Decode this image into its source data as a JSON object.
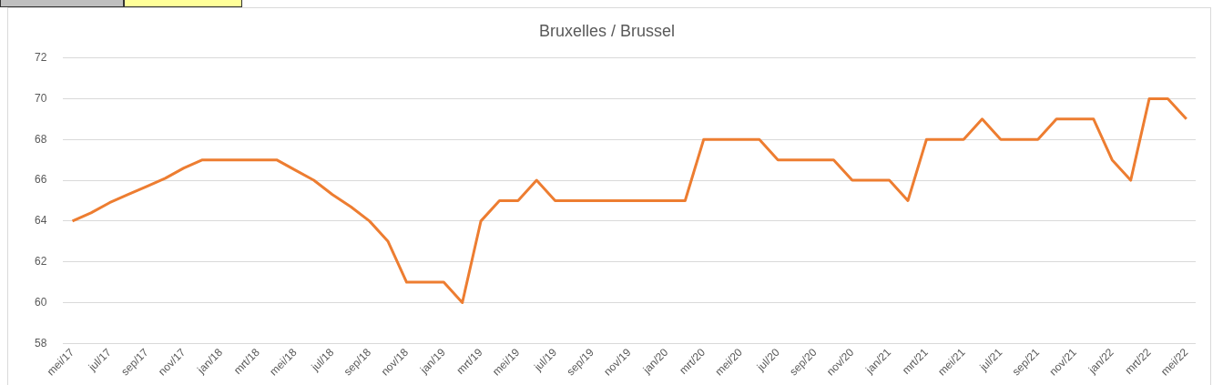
{
  "chart_data": {
    "type": "line",
    "title": "Bruxelles / Brussel",
    "categories": [
      "mei/17",
      null,
      "jul/17",
      null,
      "sep/17",
      null,
      "nov/17",
      null,
      "jan/18",
      null,
      "mrt/18",
      null,
      "mei/18",
      null,
      "jul/18",
      null,
      "sep/18",
      null,
      "nov/18",
      null,
      "jan/19",
      null,
      "mrt/19",
      null,
      "mei/19",
      null,
      "jul/19",
      null,
      "sep/19",
      null,
      "nov/19",
      null,
      "jan/20",
      null,
      "mrt/20",
      null,
      "mei/20",
      null,
      "jul/20",
      null,
      "sep/20",
      null,
      "nov/20",
      null,
      "jan/21",
      null,
      "mrt/21",
      null,
      "mei/21",
      null,
      "jul/21",
      null,
      "sep/21",
      null,
      "nov/21",
      null,
      "jan/22",
      null,
      "mrt/22",
      null,
      "mei/22"
    ],
    "series": [
      {
        "color": "#ed7d31",
        "values": [
          64,
          64.4,
          64.9,
          65.3,
          65.7,
          66.1,
          66.6,
          67,
          67,
          67,
          67,
          67,
          66.5,
          66,
          65.3,
          64.7,
          64,
          63,
          61,
          61,
          61,
          60,
          64,
          65,
          65,
          66,
          65,
          65,
          65,
          65,
          65,
          65,
          65,
          65,
          68,
          68,
          68,
          68,
          67,
          67,
          67,
          67,
          66,
          66,
          66,
          65,
          68,
          68,
          68,
          69,
          68,
          68,
          68,
          69,
          69,
          69,
          67,
          66,
          70,
          70,
          69
        ]
      }
    ],
    "ylim": [
      58,
      72
    ],
    "yticks": [
      58,
      60,
      62,
      64,
      66,
      68,
      70,
      72
    ],
    "grid": "y",
    "legend": false,
    "marker": "none",
    "line_style": "solid"
  }
}
